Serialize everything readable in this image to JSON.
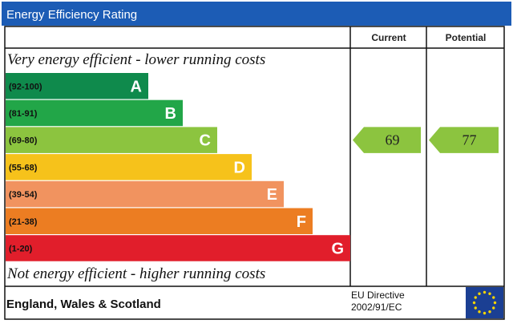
{
  "header": {
    "title": "Energy Efficiency Rating"
  },
  "columns": {
    "current": "Current",
    "potential": "Potential"
  },
  "captions": {
    "top": "Very energy efficient - lower running costs",
    "bottom": "Not energy efficient - higher running costs"
  },
  "footer": {
    "region": "England, Wales & Scotland",
    "directive_line1": "EU Directive",
    "directive_line2": "2002/91/EC"
  },
  "chart_data": {
    "type": "bar",
    "title": "Energy Efficiency Rating",
    "bands": [
      {
        "letter": "A",
        "range": "(92-100)",
        "min": 92,
        "max": 100,
        "color": "#0f8a4c"
      },
      {
        "letter": "B",
        "range": "(81-91)",
        "min": 81,
        "max": 91,
        "color": "#22a648"
      },
      {
        "letter": "C",
        "range": "(69-80)",
        "min": 69,
        "max": 80,
        "color": "#8cc43f"
      },
      {
        "letter": "D",
        "range": "(55-68)",
        "min": 55,
        "max": 68,
        "color": "#f6c21b"
      },
      {
        "letter": "E",
        "range": "(39-54)",
        "min": 39,
        "max": 54,
        "color": "#f1935f"
      },
      {
        "letter": "F",
        "range": "(21-38)",
        "min": 21,
        "max": 38,
        "color": "#ec7d22"
      },
      {
        "letter": "G",
        "range": "(1-20)",
        "min": 1,
        "max": 20,
        "color": "#e11e2b"
      }
    ],
    "current": 69,
    "potential": 77
  },
  "colors": {
    "header_bg": "#1c5cb5",
    "frame": "#111111",
    "eu_flag": "#1b3f93",
    "eu_star": "#f5d400"
  }
}
